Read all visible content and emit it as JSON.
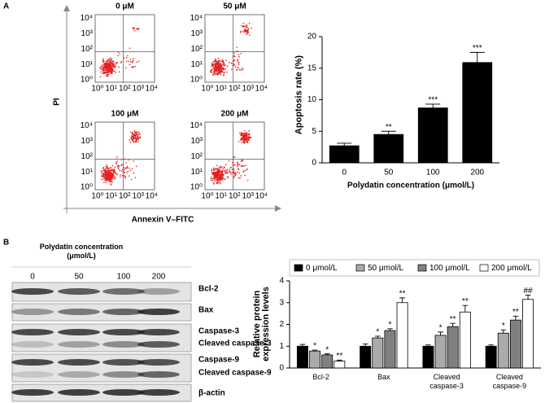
{
  "panel_labels": [
    "A",
    "B"
  ],
  "flow": {
    "titles": [
      "0 μM",
      "50 μM",
      "100 μM",
      "200 μM"
    ],
    "axis_ticks": [
      "10⁰",
      "10¹",
      "10²",
      "10³",
      "10⁴"
    ],
    "x_label": "Annexin V–FITC",
    "y_label": "PI"
  },
  "blot": {
    "header": "Polydatin concentration (μmol/L)",
    "lanes": [
      "0",
      "50",
      "100",
      "200"
    ],
    "bands": [
      "Bcl-2",
      "Bax",
      "Caspase-3",
      "Cleaved caspase-3",
      "Caspase-9",
      "Cleaved caspase-9",
      "β-actin"
    ]
  },
  "chart_data": [
    {
      "type": "bar",
      "categories": [
        "0",
        "50",
        "100",
        "200"
      ],
      "values": [
        2.7,
        4.5,
        8.7,
        15.9
      ],
      "errors": [
        0.4,
        0.5,
        0.6,
        1.6
      ],
      "annotations": [
        null,
        "**",
        "***",
        "***"
      ],
      "color": "#000000",
      "y_label": "Apoptosis rate (%)",
      "x_label": "Polydatin concentration (μmol/L)",
      "ylim": [
        0,
        20
      ],
      "yticks": [
        0,
        5,
        10,
        15,
        20
      ]
    },
    {
      "type": "bar",
      "categories": [
        "Bcl-2",
        "Bax",
        "Cleaved caspase-3",
        "Cleaved caspase-9"
      ],
      "y_label": "Relative protein expression levels",
      "ylim": [
        0,
        4
      ],
      "yticks": [
        0,
        1,
        2,
        3,
        4
      ],
      "legend": "top",
      "series": [
        {
          "name": "0 μmol/L",
          "color": "#000000",
          "values": [
            1.0,
            1.0,
            1.0,
            1.0
          ],
          "errors": [
            0.08,
            0.1,
            0.06,
            0.06
          ],
          "annotations": [
            null,
            null,
            null,
            null
          ]
        },
        {
          "name": "50 μmol/L",
          "color": "#aaaaaa",
          "values": [
            0.78,
            1.38,
            1.5,
            1.6
          ],
          "errors": [
            0.04,
            0.08,
            0.15,
            0.15
          ],
          "annotations": [
            "*",
            "*",
            "*",
            "*"
          ]
        },
        {
          "name": "100 μmol/L",
          "color": "#808080",
          "values": [
            0.6,
            1.72,
            1.9,
            2.2
          ],
          "errors": [
            0.05,
            0.08,
            0.15,
            0.18
          ],
          "annotations": [
            "*",
            "*",
            "**",
            "**"
          ]
        },
        {
          "name": "200 μmol/L",
          "color": "#ffffff",
          "values": [
            0.32,
            3.0,
            2.57,
            3.15
          ],
          "errors": [
            0.04,
            0.22,
            0.3,
            0.2
          ],
          "annotations": [
            "**",
            "**",
            "**",
            "##"
          ]
        }
      ]
    }
  ]
}
